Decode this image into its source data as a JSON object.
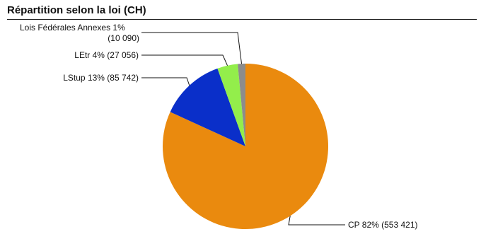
{
  "chart_data": {
    "type": "pie",
    "title": "Répartition selon la loi (CH)",
    "slices": [
      {
        "label": "CP",
        "percent": 82,
        "value": 553421,
        "text": "CP 82% (553 421)",
        "color": "#EA8A0E"
      },
      {
        "label": "LStup",
        "percent": 13,
        "value": 85742,
        "text": "LStup 13% (85 742)",
        "color": "#0A2FC9"
      },
      {
        "label": "LEtr",
        "percent": 4,
        "value": 27056,
        "text": "LEtr 4% (27 056)",
        "color": "#93EE4B"
      },
      {
        "label": "Lois Fédérales Annexes",
        "percent": 1,
        "value": 10090,
        "text_lines": [
          "Lois Fédérales Annexes 1%",
          "(10 090)"
        ],
        "color": "#8C8C8C"
      }
    ]
  }
}
